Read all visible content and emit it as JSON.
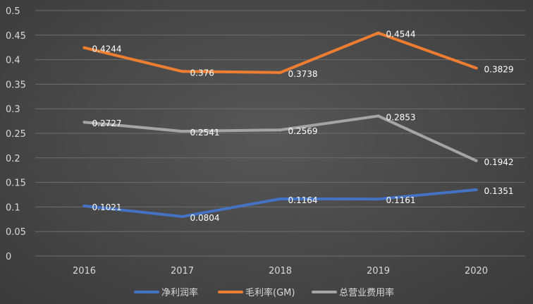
{
  "chart_data": {
    "type": "line",
    "categories": [
      "2016",
      "2017",
      "2018",
      "2019",
      "2020"
    ],
    "series": [
      {
        "name": "净利润率",
        "color": "#4472c4",
        "values": [
          0.1021,
          0.0804,
          0.1164,
          0.1161,
          0.1351
        ],
        "labels": [
          "0.1021",
          "0.0804",
          "0.1164",
          "0.1161",
          "0.1351"
        ]
      },
      {
        "name": "毛利率(GM)",
        "color": "#ed7d31",
        "values": [
          0.4244,
          0.376,
          0.3738,
          0.4544,
          0.3829
        ],
        "labels": [
          "0.4244",
          "0.376",
          "0.3738",
          "0.4544",
          "0.3829"
        ]
      },
      {
        "name": "总营业费用率",
        "color": "#a5a5a5",
        "values": [
          0.2727,
          0.2541,
          0.2569,
          0.2853,
          0.1942
        ],
        "labels": [
          "0.2727",
          "0.2541",
          "0.2569",
          "0.2853",
          "0.1942"
        ]
      }
    ],
    "yticks": [
      "0",
      "0.05",
      "0.1",
      "0.15",
      "0.2",
      "0.25",
      "0.3",
      "0.35",
      "0.4",
      "0.45",
      "0.5"
    ],
    "ylim": [
      0,
      0.5
    ],
    "grid": true,
    "legend_position": "bottom"
  }
}
